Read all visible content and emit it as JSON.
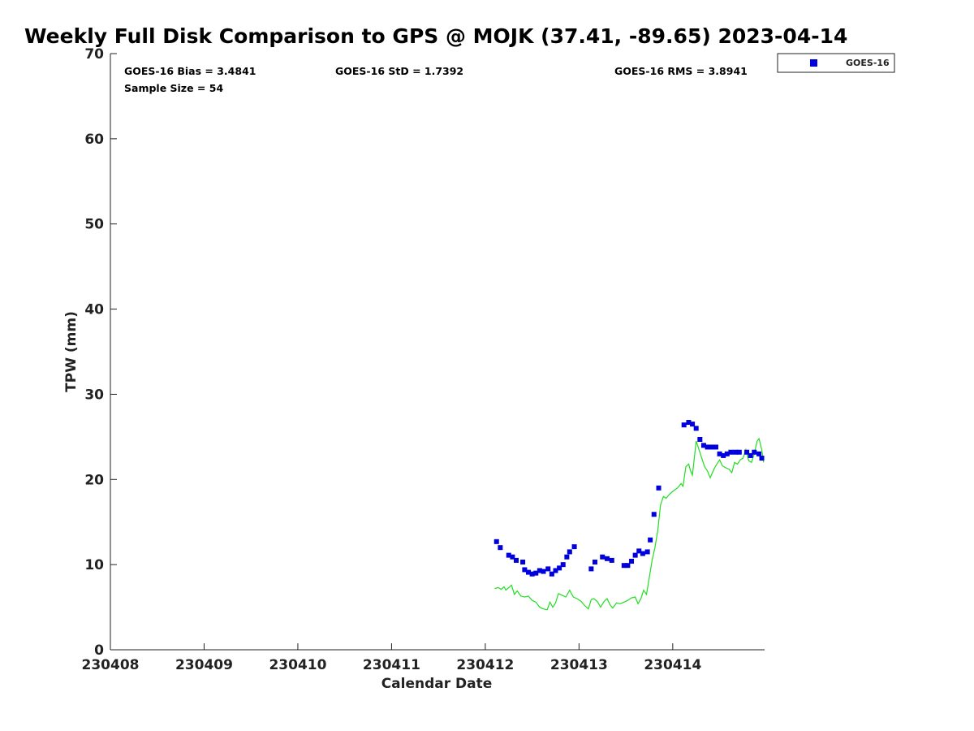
{
  "chart_data": {
    "type": "scatter",
    "title": "Weekly Full Disk Comparison to GPS @ MOJK (37.41, -89.65) 2023-04-14",
    "xlabel": "Calendar Date",
    "ylabel": "TPW (mm)",
    "xlim": [
      0,
      6.98
    ],
    "ylim": [
      0,
      70
    ],
    "x_ticks": [
      {
        "value": 0,
        "label": "230408"
      },
      {
        "value": 1,
        "label": "230409"
      },
      {
        "value": 2,
        "label": "230410"
      },
      {
        "value": 3,
        "label": "230411"
      },
      {
        "value": 4,
        "label": "230412"
      },
      {
        "value": 5,
        "label": "230413"
      },
      {
        "value": 6,
        "label": "230414"
      }
    ],
    "y_ticks": [
      0,
      10,
      20,
      30,
      40,
      50,
      60,
      70
    ],
    "stats": {
      "bias": "GOES-16 Bias = 3.4841",
      "std": "GOES-16 StD = 1.7392",
      "rms": "GOES-16 RMS = 3.8941",
      "sample_size": "Sample Size = 54"
    },
    "legend": {
      "label": "GOES-16",
      "placement": "top-right"
    },
    "series": [
      {
        "name": "GOES-16",
        "kind": "scatter",
        "color": "#0000dd",
        "points": [
          [
            4.12,
            12.7
          ],
          [
            4.16,
            12.0
          ],
          [
            4.25,
            11.1
          ],
          [
            4.29,
            10.9
          ],
          [
            4.33,
            10.5
          ],
          [
            4.4,
            10.3
          ],
          [
            4.42,
            9.4
          ],
          [
            4.46,
            9.1
          ],
          [
            4.5,
            8.9
          ],
          [
            4.54,
            9.0
          ],
          [
            4.58,
            9.3
          ],
          [
            4.62,
            9.2
          ],
          [
            4.67,
            9.5
          ],
          [
            4.71,
            8.9
          ],
          [
            4.75,
            9.3
          ],
          [
            4.79,
            9.6
          ],
          [
            4.83,
            10.0
          ],
          [
            4.87,
            10.9
          ],
          [
            4.9,
            11.5
          ],
          [
            4.95,
            12.1
          ],
          [
            5.13,
            9.5
          ],
          [
            5.17,
            10.3
          ],
          [
            5.25,
            10.9
          ],
          [
            5.3,
            10.7
          ],
          [
            5.35,
            10.5
          ],
          [
            5.48,
            9.9
          ],
          [
            5.52,
            9.9
          ],
          [
            5.56,
            10.4
          ],
          [
            5.6,
            11.1
          ],
          [
            5.64,
            11.6
          ],
          [
            5.68,
            11.3
          ],
          [
            5.73,
            11.5
          ],
          [
            5.76,
            12.9
          ],
          [
            5.8,
            15.9
          ],
          [
            5.85,
            19.0
          ],
          [
            6.12,
            26.4
          ],
          [
            6.17,
            26.7
          ],
          [
            6.21,
            26.5
          ],
          [
            6.25,
            26.0
          ],
          [
            6.29,
            24.7
          ],
          [
            6.33,
            24.0
          ],
          [
            6.37,
            23.8
          ],
          [
            6.42,
            23.8
          ],
          [
            6.46,
            23.8
          ],
          [
            6.5,
            23.0
          ],
          [
            6.54,
            22.8
          ],
          [
            6.58,
            23.0
          ],
          [
            6.62,
            23.2
          ],
          [
            6.67,
            23.2
          ],
          [
            6.71,
            23.2
          ],
          [
            6.79,
            23.2
          ],
          [
            6.83,
            22.8
          ],
          [
            6.87,
            23.2
          ],
          [
            6.92,
            23.0
          ],
          [
            6.95,
            22.5
          ]
        ]
      },
      {
        "name": "GPS",
        "kind": "line",
        "color": "#22dd22",
        "points": [
          [
            4.1,
            7.2
          ],
          [
            4.14,
            7.3
          ],
          [
            4.17,
            7.1
          ],
          [
            4.2,
            7.4
          ],
          [
            4.22,
            7.0
          ],
          [
            4.25,
            7.3
          ],
          [
            4.28,
            7.6
          ],
          [
            4.31,
            6.5
          ],
          [
            4.34,
            6.9
          ],
          [
            4.38,
            6.3
          ],
          [
            4.42,
            6.2
          ],
          [
            4.46,
            6.3
          ],
          [
            4.5,
            5.8
          ],
          [
            4.54,
            5.6
          ],
          [
            4.58,
            5.0
          ],
          [
            4.62,
            4.8
          ],
          [
            4.66,
            4.7
          ],
          [
            4.69,
            5.6
          ],
          [
            4.72,
            5.0
          ],
          [
            4.75,
            5.5
          ],
          [
            4.78,
            6.6
          ],
          [
            4.82,
            6.4
          ],
          [
            4.86,
            6.2
          ],
          [
            4.9,
            7.0
          ],
          [
            4.94,
            6.2
          ],
          [
            4.98,
            6.0
          ],
          [
            5.02,
            5.7
          ],
          [
            5.06,
            5.2
          ],
          [
            5.1,
            4.8
          ],
          [
            5.13,
            5.9
          ],
          [
            5.16,
            6.0
          ],
          [
            5.2,
            5.6
          ],
          [
            5.23,
            5.0
          ],
          [
            5.27,
            5.7
          ],
          [
            5.3,
            6.0
          ],
          [
            5.33,
            5.3
          ],
          [
            5.36,
            4.9
          ],
          [
            5.4,
            5.5
          ],
          [
            5.44,
            5.4
          ],
          [
            5.48,
            5.6
          ],
          [
            5.52,
            5.8
          ],
          [
            5.56,
            6.1
          ],
          [
            5.6,
            6.2
          ],
          [
            5.63,
            5.4
          ],
          [
            5.66,
            6.0
          ],
          [
            5.69,
            7.0
          ],
          [
            5.72,
            6.5
          ],
          [
            5.75,
            8.5
          ],
          [
            5.78,
            10.5
          ],
          [
            5.81,
            12.0
          ],
          [
            5.84,
            14.0
          ],
          [
            5.87,
            17.0
          ],
          [
            5.9,
            18.0
          ],
          [
            5.93,
            17.8
          ],
          [
            5.96,
            18.2
          ],
          [
            6.0,
            18.6
          ],
          [
            6.05,
            19.0
          ],
          [
            6.09,
            19.5
          ],
          [
            6.11,
            19.2
          ],
          [
            6.14,
            21.5
          ],
          [
            6.17,
            21.8
          ],
          [
            6.19,
            21.0
          ],
          [
            6.21,
            20.5
          ],
          [
            6.23,
            22.5
          ],
          [
            6.25,
            24.5
          ],
          [
            6.28,
            23.5
          ],
          [
            6.31,
            22.5
          ],
          [
            6.34,
            21.5
          ],
          [
            6.37,
            21.0
          ],
          [
            6.4,
            20.2
          ],
          [
            6.44,
            21.2
          ],
          [
            6.47,
            21.8
          ],
          [
            6.5,
            22.3
          ],
          [
            6.53,
            21.6
          ],
          [
            6.56,
            21.4
          ],
          [
            6.6,
            21.2
          ],
          [
            6.63,
            20.8
          ],
          [
            6.66,
            22.0
          ],
          [
            6.69,
            21.8
          ],
          [
            6.72,
            22.3
          ],
          [
            6.75,
            22.5
          ],
          [
            6.78,
            23.5
          ],
          [
            6.81,
            22.2
          ],
          [
            6.84,
            22.0
          ],
          [
            6.87,
            23.0
          ],
          [
            6.9,
            24.5
          ],
          [
            6.92,
            24.8
          ],
          [
            6.95,
            23.5
          ],
          [
            6.97,
            22.0
          ]
        ]
      }
    ]
  }
}
